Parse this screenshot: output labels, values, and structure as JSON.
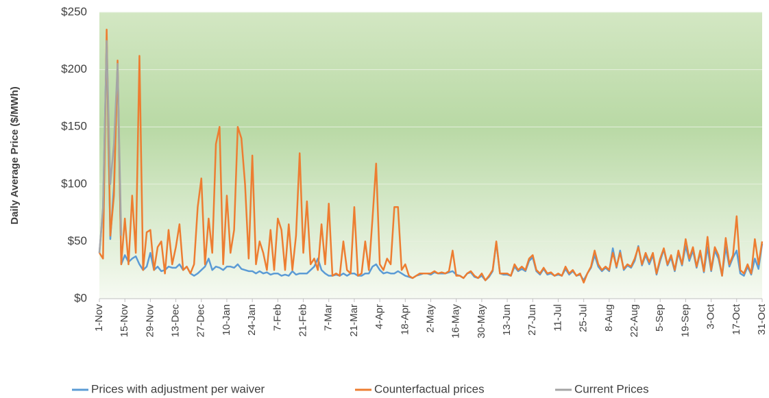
{
  "chart_data": {
    "type": "line",
    "y_label": "Daily Average Price ($/MWh)",
    "ylim": [
      0,
      250
    ],
    "yticks": [
      {
        "value": 0,
        "label": "$0"
      },
      {
        "value": 50,
        "label": "$50"
      },
      {
        "value": 100,
        "label": "$100"
      },
      {
        "value": 150,
        "label": "$150"
      },
      {
        "value": 200,
        "label": "$200"
      },
      {
        "value": 250,
        "label": "$250"
      }
    ],
    "grid": true,
    "legend": "bottom",
    "categories": [
      "1-Nov",
      null,
      null,
      null,
      null,
      null,
      null,
      "15-Nov",
      null,
      null,
      null,
      null,
      null,
      null,
      "29-Nov",
      null,
      null,
      null,
      null,
      null,
      null,
      "13-Dec",
      null,
      null,
      null,
      null,
      null,
      null,
      "27-Dec",
      null,
      null,
      null,
      null,
      null,
      null,
      "10-Jan",
      null,
      null,
      null,
      null,
      null,
      null,
      "24-Jan",
      null,
      null,
      null,
      null,
      null,
      null,
      "7-Feb",
      null,
      null,
      null,
      null,
      null,
      null,
      "21-Feb",
      null,
      null,
      null,
      null,
      null,
      null,
      "7-Mar",
      null,
      null,
      null,
      null,
      null,
      null,
      "21-Mar",
      null,
      null,
      null,
      null,
      null,
      null,
      "4-Apr",
      null,
      null,
      null,
      null,
      null,
      null,
      "18-Apr",
      null,
      null,
      null,
      null,
      null,
      null,
      "2-May",
      null,
      null,
      null,
      null,
      null,
      null,
      "16-May",
      null,
      null,
      null,
      null,
      null,
      null,
      "30-May",
      null,
      null,
      null,
      null,
      null,
      null,
      "13-Jun",
      null,
      null,
      null,
      null,
      null,
      null,
      "27-Jun",
      null,
      null,
      null,
      null,
      null,
      null,
      "11-Jul",
      null,
      null,
      null,
      null,
      null,
      null,
      "25-Jul",
      null,
      null,
      null,
      null,
      null,
      null,
      "8-Aug",
      null,
      null,
      null,
      null,
      null,
      null,
      "22-Aug",
      null,
      null,
      null,
      null,
      null,
      null,
      "5-Sep",
      null,
      null,
      null,
      null,
      null,
      null,
      "19-Sep",
      null,
      null,
      null,
      null,
      null,
      null,
      "3-Oct",
      null,
      null,
      null,
      null,
      null,
      null,
      "17-Oct",
      null,
      null,
      null,
      null,
      null,
      null,
      "31-Oct"
    ],
    "series": [
      {
        "name": "Prices with adjustment per waiver",
        "color": "#5b9bd5",
        "values": [
          40,
          78,
          225,
          52,
          98,
          205,
          30,
          38,
          32,
          35,
          37,
          30,
          25,
          28,
          40,
          25,
          28,
          24,
          25,
          28,
          27,
          27,
          30,
          25,
          28,
          22,
          20,
          22,
          25,
          28,
          35,
          25,
          28,
          27,
          25,
          28,
          28,
          27,
          30,
          26,
          25,
          24,
          24,
          22,
          24,
          22,
          23,
          21,
          22,
          22,
          20,
          21,
          20,
          24,
          21,
          22,
          22,
          22,
          25,
          28,
          35,
          25,
          22,
          20,
          20,
          21,
          20,
          22,
          20,
          22,
          22,
          20,
          20,
          22,
          22,
          28,
          30,
          25,
          22,
          23,
          22,
          22,
          24,
          22,
          20,
          19,
          18,
          20,
          21,
          22,
          22,
          21,
          23,
          22,
          22,
          22,
          23,
          24,
          21,
          20,
          18,
          22,
          23,
          19,
          18,
          20,
          16,
          19,
          24,
          49,
          22,
          21,
          21,
          20,
          28,
          24,
          26,
          24,
          33,
          36,
          24,
          21,
          26,
          21,
          22,
          20,
          21,
          20,
          26,
          21,
          24,
          20,
          21,
          16,
          22,
          27,
          38,
          28,
          24,
          27,
          24,
          44,
          27,
          42,
          25,
          29,
          27,
          33,
          46,
          29,
          38,
          30,
          38,
          21,
          33,
          43,
          29,
          36,
          24,
          40,
          29,
          46,
          33,
          42,
          27,
          40,
          23,
          45,
          24,
          42,
          35,
          20,
          45,
          28,
          36,
          42,
          22,
          20,
          28,
          21,
          35,
          26,
          48
        ]
      },
      {
        "name": "Counterfactual prices",
        "color": "#ed7d31",
        "values": [
          40,
          35,
          235,
          55,
          90,
          208,
          30,
          70,
          30,
          90,
          40,
          212,
          25,
          58,
          60,
          25,
          45,
          50,
          22,
          60,
          30,
          45,
          65,
          25,
          28,
          22,
          30,
          80,
          105,
          30,
          70,
          40,
          135,
          150,
          30,
          90,
          40,
          60,
          150,
          140,
          100,
          35,
          125,
          30,
          50,
          40,
          25,
          60,
          25,
          70,
          60,
          25,
          65,
          25,
          55,
          127,
          40,
          85,
          30,
          35,
          25,
          65,
          30,
          83,
          20,
          22,
          20,
          50,
          25,
          22,
          80,
          20,
          22,
          50,
          25,
          70,
          118,
          30,
          25,
          35,
          30,
          80,
          80,
          25,
          30,
          20,
          18,
          20,
          22,
          22,
          22,
          22,
          24,
          22,
          23,
          22,
          24,
          42,
          20,
          20,
          18,
          22,
          24,
          20,
          18,
          22,
          16,
          20,
          25,
          50,
          22,
          22,
          22,
          20,
          30,
          25,
          28,
          25,
          35,
          38,
          25,
          22,
          27,
          22,
          23,
          20,
          22,
          20,
          28,
          22,
          25,
          20,
          22,
          14,
          22,
          28,
          42,
          30,
          25,
          28,
          25,
          40,
          28,
          40,
          26,
          30,
          28,
          35,
          45,
          30,
          40,
          32,
          40,
          22,
          35,
          44,
          30,
          38,
          25,
          42,
          30,
          52,
          35,
          45,
          28,
          42,
          24,
          54,
          25,
          45,
          38,
          20,
          53,
          30,
          38,
          72,
          25,
          22,
          30,
          22,
          52,
          30,
          50
        ]
      },
      {
        "name": "Current Prices",
        "color": "#a5a5a5",
        "values": [
          40,
          80,
          225,
          100,
          135,
          205,
          55,
          null,
          null,
          null,
          null,
          null,
          null,
          null,
          null,
          null,
          null,
          null,
          null,
          null,
          null,
          null,
          null,
          null,
          null,
          null,
          null,
          null,
          null,
          null,
          null,
          null,
          null,
          null,
          null,
          null,
          null,
          null,
          null,
          null,
          null,
          null,
          null,
          null,
          null,
          null,
          null,
          null,
          null,
          null,
          null,
          null,
          null,
          null,
          null,
          null,
          null,
          null,
          null,
          null,
          null,
          null,
          null,
          null,
          null,
          null,
          null,
          null,
          null,
          null,
          null,
          null,
          null,
          null,
          null,
          null,
          null,
          null,
          null,
          null,
          null,
          null,
          null,
          null,
          null,
          null,
          null,
          null,
          null,
          null,
          null,
          null,
          null,
          null,
          null,
          null,
          null,
          null,
          null,
          null,
          null,
          null,
          null,
          null,
          null,
          null,
          null,
          null,
          null,
          null,
          null,
          null,
          null,
          null,
          null,
          null,
          null,
          null,
          null,
          null,
          null,
          null,
          null,
          null,
          null,
          null,
          null,
          null,
          null,
          null,
          null,
          null,
          null,
          null,
          null,
          null,
          null,
          null,
          null,
          null,
          null,
          null,
          null,
          null,
          null,
          null,
          null,
          null,
          null,
          null,
          null,
          null,
          null,
          null,
          null,
          null,
          null,
          null,
          null,
          null,
          null,
          null,
          null,
          null,
          null,
          null,
          null,
          null,
          null,
          null,
          null,
          null,
          null,
          null,
          null,
          null,
          null,
          null,
          null,
          null,
          null,
          null,
          null
        ]
      }
    ]
  }
}
